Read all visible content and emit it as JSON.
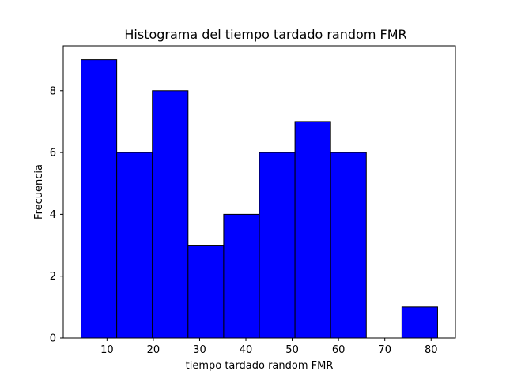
{
  "chart_data": {
    "type": "bar",
    "title": "Histograma del tiempo tardado random FMR",
    "xlabel": "tiempo tardado random FMR",
    "ylabel": "Frecuencia",
    "bin_edges": [
      4.4,
      12.1,
      19.8,
      27.5,
      35.2,
      42.9,
      50.6,
      58.3,
      66.0,
      73.7,
      81.4
    ],
    "values": [
      9,
      6,
      8,
      3,
      4,
      6,
      7,
      6,
      0,
      1
    ],
    "xlim": [
      0.55,
      85.25
    ],
    "ylim": [
      0,
      9.45
    ],
    "xticks": [
      "10",
      "20",
      "30",
      "40",
      "50",
      "60",
      "70",
      "80"
    ],
    "yticks": [
      "0",
      "2",
      "4",
      "6",
      "8"
    ],
    "grid": false,
    "bar_color": "#0000ff",
    "edge_color": "#000000"
  }
}
